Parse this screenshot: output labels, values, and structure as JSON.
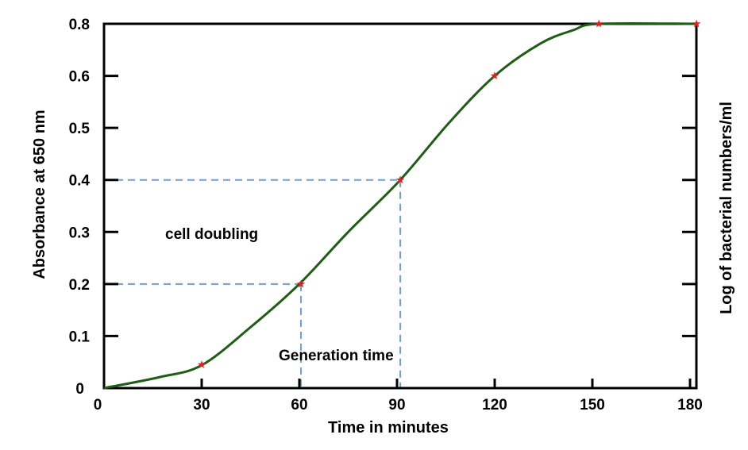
{
  "chart_data": {
    "type": "line",
    "xlabel": "Time in minutes",
    "ylabel": "Absorbance at 650 nm",
    "ylabel_right": "Log of bacterial numbers/ml",
    "x_ticks": [
      "0",
      "30",
      "60",
      "90",
      "120",
      "150",
      "180"
    ],
    "x_tick_values": [
      0,
      30,
      60,
      90,
      120,
      150,
      180
    ],
    "y_ticks": [
      "0",
      "0.1",
      "0.2",
      "0.3",
      "0.4",
      "0.5",
      "0.6",
      "0.8"
    ],
    "y_tick_values": [
      0,
      0.1,
      0.2,
      0.3,
      0.4,
      0.5,
      0.6,
      0.8
    ],
    "xlim": [
      0,
      182
    ],
    "ylim": [
      0,
      0.8
    ],
    "grid": false,
    "legend": "none",
    "colors": {
      "curve": "#1e5e14",
      "markers": "#e02020",
      "guides": "#6a9fd8"
    },
    "curve": {
      "x": [
        0,
        17,
        30,
        45,
        60,
        75,
        91,
        106,
        120,
        134,
        144,
        152,
        182
      ],
      "y": [
        0,
        0.021,
        0.044,
        0.117,
        0.2,
        0.3,
        0.4,
        0.51,
        0.6,
        0.724,
        0.775,
        0.8,
        0.8
      ]
    },
    "markers": {
      "x": [
        30,
        60.5,
        91,
        120,
        152,
        182
      ],
      "y": [
        0.045,
        0.2,
        0.4,
        0.6,
        0.8,
        0.8
      ]
    },
    "guides": [
      {
        "x": 60.5,
        "y": 0.2
      },
      {
        "x": 91,
        "y": 0.4
      }
    ],
    "annotations": [
      {
        "text": "cell doubling",
        "x": 19,
        "y": 0.3
      },
      {
        "text": "Generation time",
        "x": 54,
        "y": 0.063
      }
    ]
  }
}
